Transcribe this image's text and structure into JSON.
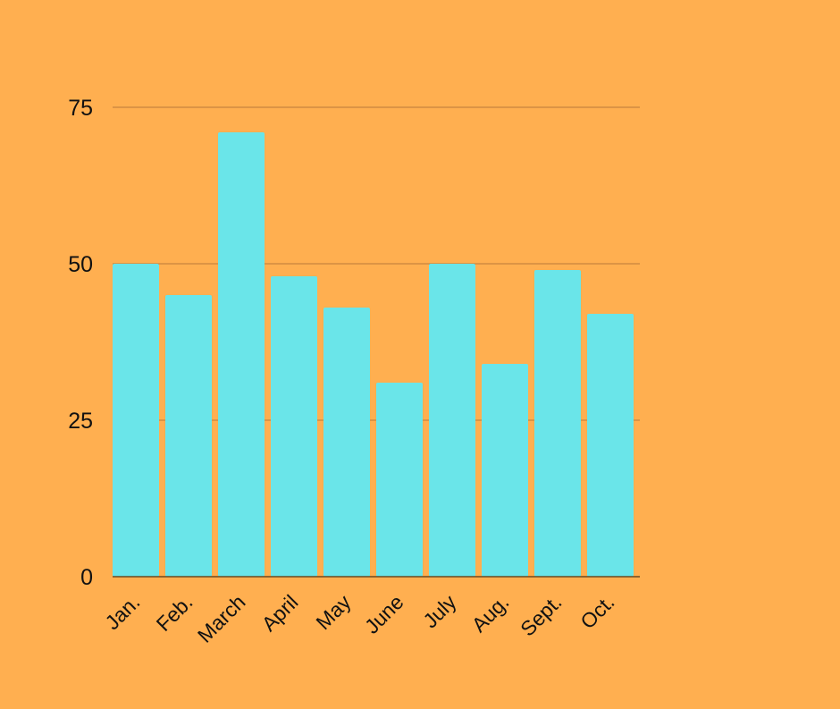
{
  "colors": {
    "background": "#FFAF50",
    "bar": "#6AE5E9",
    "gridline": "#B8793A",
    "text": "#111111"
  },
  "chart_data": {
    "type": "bar",
    "title": "",
    "xlabel": "",
    "ylabel": "",
    "categories": [
      "Jan.",
      "Feb.",
      "March",
      "April",
      "May",
      "June",
      "July",
      "Aug.",
      "Sept.",
      "Oct."
    ],
    "values": [
      50,
      45,
      71,
      48,
      43,
      31,
      50,
      34,
      49,
      42
    ],
    "ylim": [
      0,
      75
    ],
    "yticks": [
      "0",
      "25",
      "50",
      "75"
    ],
    "grid": true,
    "legend": "none"
  }
}
